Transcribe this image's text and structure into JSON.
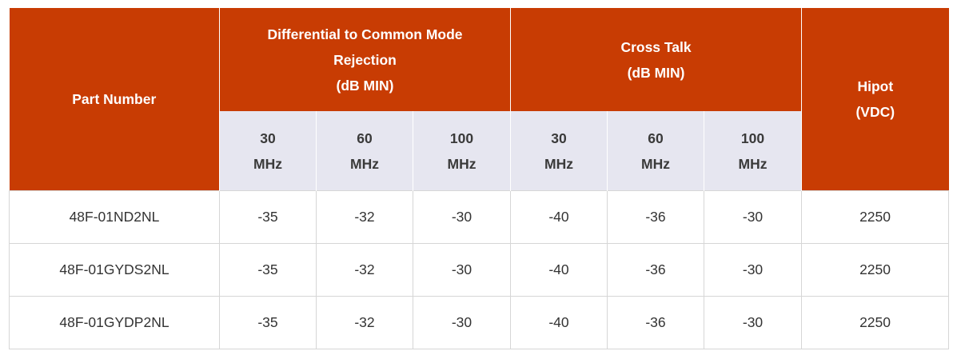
{
  "header": {
    "part_number": "Part Number",
    "dcmr": [
      "Differential to Common Mode",
      "Rejection",
      "(dB MIN)"
    ],
    "cross_talk": [
      "Cross Talk",
      "(dB MIN)"
    ],
    "hipot": [
      "Hipot",
      "(VDC)"
    ],
    "freqs": [
      {
        "value": "30",
        "unit": "MHz"
      },
      {
        "value": "60",
        "unit": "MHz"
      },
      {
        "value": "100",
        "unit": "MHz"
      },
      {
        "value": "30",
        "unit": "MHz"
      },
      {
        "value": "60",
        "unit": "MHz"
      },
      {
        "value": "100",
        "unit": "MHz"
      }
    ]
  },
  "rows": [
    {
      "part": "48F-01ND2NL",
      "dcmr_30": "-35",
      "dcmr_60": "-32",
      "dcmr_100": "-30",
      "ct_30": "-40",
      "ct_60": "-36",
      "ct_100": "-30",
      "hipot": "2250"
    },
    {
      "part": "48F-01GYDS2NL",
      "dcmr_30": "-35",
      "dcmr_60": "-32",
      "dcmr_100": "-30",
      "ct_30": "-40",
      "ct_60": "-36",
      "ct_100": "-30",
      "hipot": "2250"
    },
    {
      "part": "48F-01GYDP2NL",
      "dcmr_30": "-35",
      "dcmr_60": "-32",
      "dcmr_100": "-30",
      "ct_30": "-40",
      "ct_60": "-36",
      "ct_100": "-30",
      "hipot": "2250"
    }
  ],
  "colors": {
    "header_bg": "#c83c03",
    "subheader_bg": "#e6e6f0",
    "border": "#d6d6d6"
  }
}
